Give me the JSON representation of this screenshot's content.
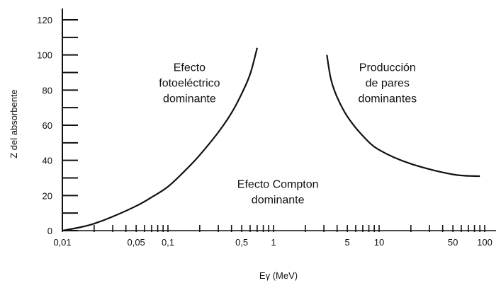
{
  "chart_data": {
    "type": "line",
    "title": "",
    "xlabel": "Eγ (MeV)",
    "ylabel": "Z del absorbente",
    "x_scale": "log",
    "xlim": [
      0.01,
      100
    ],
    "ylim": [
      0,
      120
    ],
    "grid": false,
    "legend": "none",
    "x_tick_labels": [
      {
        "value": 0.01,
        "label": "0,01"
      },
      {
        "value": 0.05,
        "label": "0,05"
      },
      {
        "value": 0.1,
        "label": "0,1"
      },
      {
        "value": 0.5,
        "label": "0,5"
      },
      {
        "value": 1,
        "label": "1"
      },
      {
        "value": 5,
        "label": "5"
      },
      {
        "value": 10,
        "label": "10"
      },
      {
        "value": 50,
        "label": "50"
      },
      {
        "value": 100,
        "label": "100"
      }
    ],
    "y_tick_labels": [
      {
        "value": 0,
        "label": "0"
      },
      {
        "value": 20,
        "label": "20"
      },
      {
        "value": 40,
        "label": "40"
      },
      {
        "value": 60,
        "label": "60"
      },
      {
        "value": 80,
        "label": "80"
      },
      {
        "value": 100,
        "label": "100"
      },
      {
        "value": 120,
        "label": "120"
      }
    ],
    "series": [
      {
        "x": [
          0.01,
          0.015,
          0.02,
          0.03,
          0.05,
          0.07,
          0.1,
          0.15,
          0.2,
          0.3,
          0.4,
          0.5,
          0.6,
          0.7
        ],
        "y": [
          0,
          2,
          4,
          8,
          14,
          19,
          25,
          35,
          43,
          56,
          67,
          78,
          89,
          104
        ]
      },
      {
        "x": [
          3.2,
          3.5,
          4,
          5,
          7,
          10,
          20,
          50,
          90
        ],
        "y": [
          100,
          86,
          76,
          65,
          54,
          46,
          38,
          32,
          31
        ]
      }
    ],
    "annotations": [
      {
        "lines": [
          "Efecto",
          "fotoeléctrico",
          "dominante"
        ],
        "x": 0.16,
        "y": 84
      },
      {
        "lines": [
          "Producción",
          "de pares",
          "dominantes"
        ],
        "x": 12,
        "y": 84
      },
      {
        "lines": [
          "Efecto Compton",
          "dominante"
        ],
        "x": 1.1,
        "y": 22
      }
    ]
  }
}
